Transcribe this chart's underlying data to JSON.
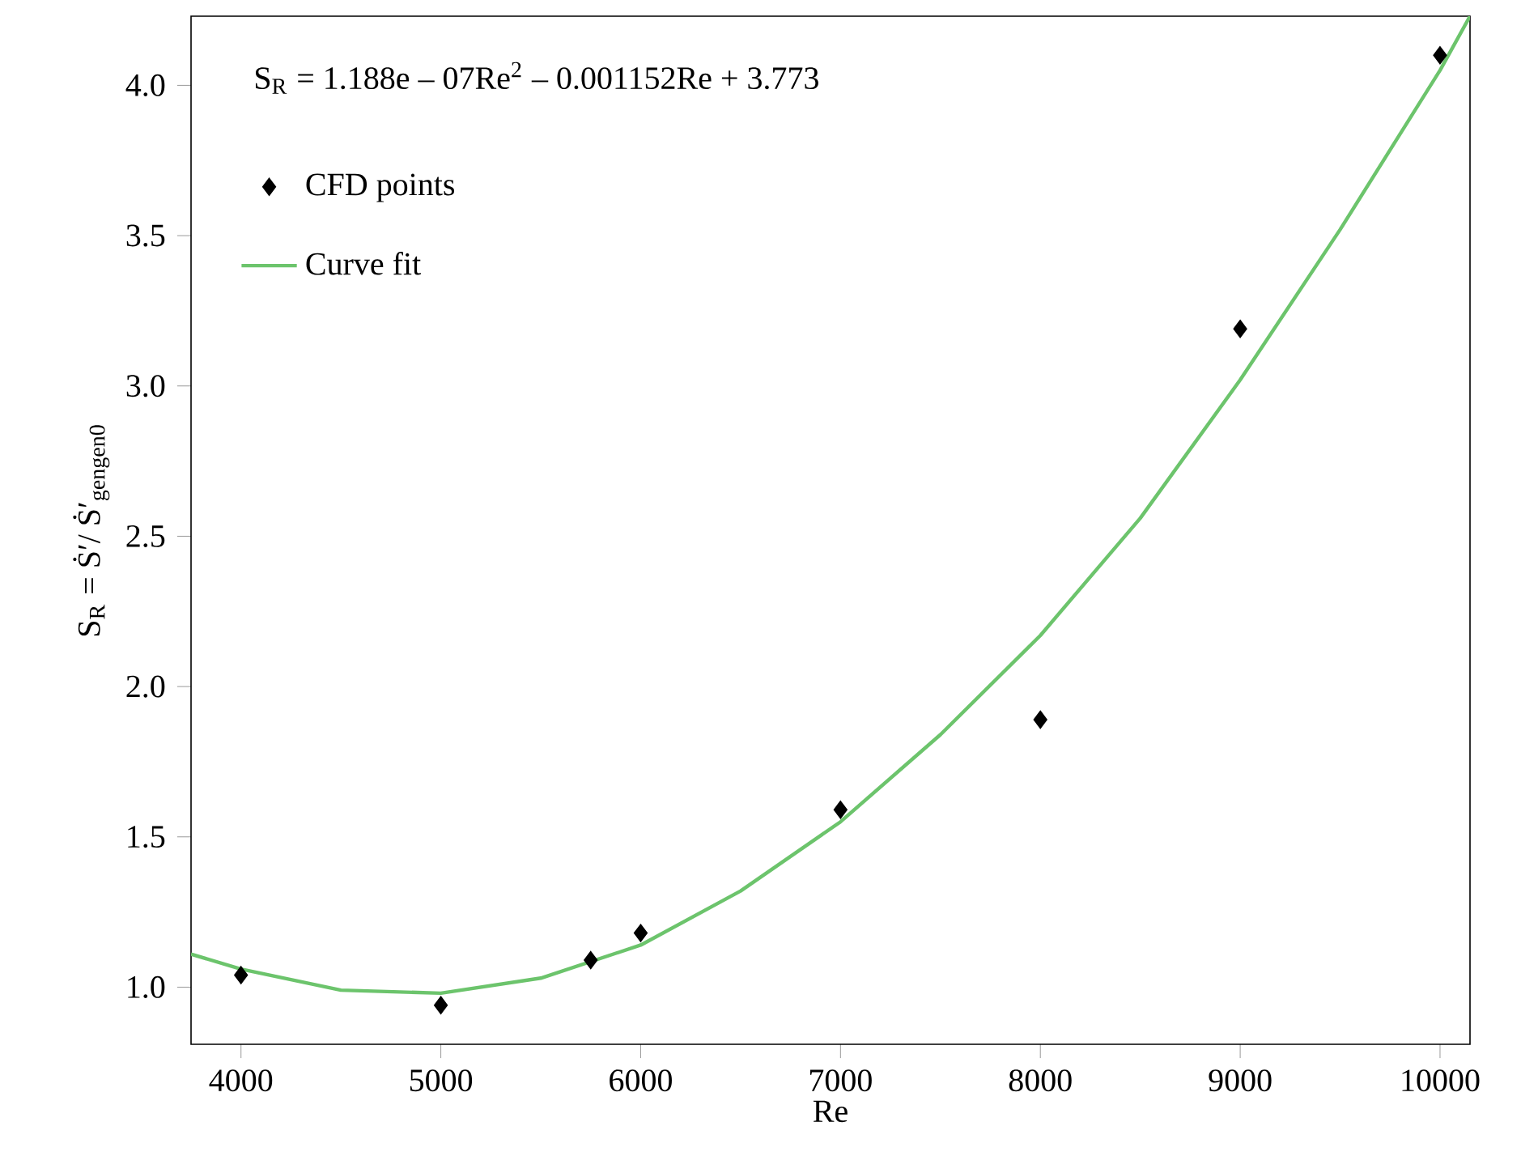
{
  "chart_data": {
    "type": "scatter",
    "xlabel": "Re",
    "ylabel": "S$_{R}$ = Ṡ′/ Ṡ′$_{gengen0}$",
    "annotations": [
      "S$_{R}$ = 1.188e – 07Re$^{2}$ – 0.001152Re + 3.773"
    ],
    "series": [
      {
        "name": "CFD points",
        "color": "#000000",
        "marker": "diamond",
        "x": [
          4000,
          5000,
          5750,
          6000,
          7000,
          8000,
          9000,
          10000
        ],
        "values": [
          1.04,
          0.94,
          1.09,
          1.18,
          1.59,
          1.89,
          3.19,
          4.1
        ]
      },
      {
        "name": "Curve fit",
        "type": "line",
        "color": "#6cc46c",
        "marker": "none",
        "x": [
          3750,
          4000,
          4500,
          5000,
          5500,
          6000,
          6500,
          7000,
          7500,
          8000,
          8500,
          9000,
          9500,
          10000,
          10150
        ],
        "values": [
          1.11,
          1.06,
          0.99,
          0.98,
          1.03,
          1.14,
          1.32,
          1.55,
          1.84,
          2.17,
          2.56,
          3.02,
          3.52,
          4.05,
          4.23
        ]
      }
    ],
    "xlim": [
      3750,
      10150
    ],
    "ylim": [
      0.81,
      4.23
    ],
    "xticks": [
      4000,
      5000,
      6000,
      7000,
      8000,
      9000,
      10000
    ],
    "yticks": [
      {
        "value": 1,
        "label": "1.0"
      },
      {
        "value": 1.5,
        "label": "1.5"
      },
      {
        "value": 2,
        "label": "2.0"
      },
      {
        "value": 2.5,
        "label": "2.5"
      },
      {
        "value": 3,
        "label": "3.0"
      },
      {
        "value": 3.5,
        "label": "3.5"
      },
      {
        "value": 4,
        "label": "4.0"
      }
    ],
    "grid": false,
    "legend": "top left"
  }
}
